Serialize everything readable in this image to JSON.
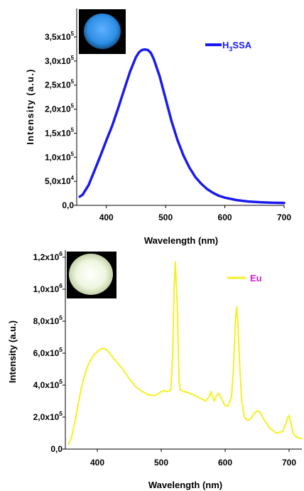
{
  "chart_data": [
    {
      "type": "line",
      "xlabel": "Wavelength (nm)",
      "ylabel": "Intensity (a.u.)",
      "xlim": [
        350,
        700
      ],
      "ylim": [
        0,
        350000
      ],
      "x_ticks": [
        "400",
        "500",
        "600",
        "700"
      ],
      "y_ticks": [
        {
          "mant": "0,0",
          "exp": ""
        },
        {
          "mant": "5,0x10",
          "exp": "4"
        },
        {
          "mant": "1,0x10",
          "exp": "5"
        },
        {
          "mant": "1,5x10",
          "exp": "5"
        },
        {
          "mant": "2,0x10",
          "exp": "5"
        },
        {
          "mant": "2,5x10",
          "exp": "5"
        },
        {
          "mant": "3,0x10",
          "exp": "5"
        },
        {
          "mant": "3,5x10",
          "exp": "5"
        }
      ],
      "y_tick_values": [
        0,
        50000,
        100000,
        150000,
        200000,
        250000,
        300000,
        350000
      ],
      "legend": {
        "base": "H",
        "sub": "3",
        "rest": "SSA",
        "position": "top-right"
      },
      "series": [
        {
          "name": "H3SSA",
          "color": "#1a1aee",
          "x": [
            355,
            360,
            370,
            380,
            390,
            400,
            410,
            420,
            430,
            440,
            450,
            455,
            460,
            465,
            470,
            475,
            480,
            490,
            500,
            510,
            520,
            530,
            540,
            550,
            560,
            570,
            580,
            590,
            600,
            620,
            640,
            660,
            680,
            700
          ],
          "y": [
            18000,
            22000,
            42000,
            72000,
            103000,
            135000,
            166000,
            202000,
            240000,
            278000,
            308000,
            318000,
            323000,
            324000,
            323000,
            317000,
            304000,
            268000,
            222000,
            175000,
            136000,
            104000,
            79000,
            59000,
            45000,
            34000,
            26000,
            20000,
            16000,
            11000,
            8000,
            6500,
            5500,
            5000
          ]
        }
      ],
      "inset_color": "#2e8fe6"
    },
    {
      "type": "line",
      "xlabel": "Wavelength (nm)",
      "ylabel": "Intensity (a.u.)",
      "xlim": [
        350,
        720
      ],
      "ylim": [
        0,
        1300000
      ],
      "x_ticks": [
        "400",
        "500",
        "600",
        "700"
      ],
      "y_ticks": [
        {
          "mant": "0,0",
          "exp": ""
        },
        {
          "mant": "2,0x10",
          "exp": "5"
        },
        {
          "mant": "4,0x10",
          "exp": "5"
        },
        {
          "mant": "6,0x10",
          "exp": "5"
        },
        {
          "mant": "8,0x10",
          "exp": "5"
        },
        {
          "mant": "1,0x10",
          "exp": "6"
        },
        {
          "mant": "1,2x10",
          "exp": "6"
        }
      ],
      "y_tick_values": [
        0,
        200000,
        400000,
        600000,
        800000,
        1000000,
        1200000
      ],
      "legend": {
        "base": "Eu",
        "sub": "",
        "rest": "",
        "position": "top-right"
      },
      "series": [
        {
          "name": "Eu",
          "color": "#f5f020",
          "x": [
            355,
            360,
            365,
            370,
            375,
            380,
            385,
            390,
            395,
            400,
            405,
            410,
            415,
            420,
            425,
            430,
            440,
            450,
            460,
            470,
            480,
            490,
            495,
            500,
            505,
            510,
            515,
            518,
            520,
            522,
            525,
            528,
            530,
            535,
            540,
            550,
            560,
            570,
            575,
            578,
            580,
            583,
            586,
            590,
            595,
            600,
            605,
            610,
            613,
            616,
            618,
            620,
            623,
            626,
            630,
            635,
            640,
            645,
            650,
            655,
            660,
            670,
            680,
            690,
            695,
            698,
            700,
            703,
            706,
            710,
            715,
            720
          ],
          "y": [
            30000,
            80000,
            170000,
            280000,
            380000,
            460000,
            520000,
            560000,
            590000,
            610000,
            625000,
            630000,
            620000,
            595000,
            570000,
            545000,
            500000,
            440000,
            390000,
            360000,
            340000,
            335000,
            345000,
            360000,
            365000,
            360000,
            370000,
            600000,
            1000000,
            1170000,
            900000,
            420000,
            370000,
            360000,
            355000,
            340000,
            320000,
            300000,
            330000,
            360000,
            330000,
            300000,
            330000,
            350000,
            310000,
            270000,
            270000,
            330000,
            500000,
            800000,
            890000,
            780000,
            500000,
            300000,
            200000,
            180000,
            190000,
            220000,
            240000,
            230000,
            190000,
            130000,
            100000,
            110000,
            160000,
            200000,
            210000,
            160000,
            100000,
            80000,
            70000,
            65000
          ]
        }
      ],
      "inset_color": "#eef6df"
    }
  ]
}
